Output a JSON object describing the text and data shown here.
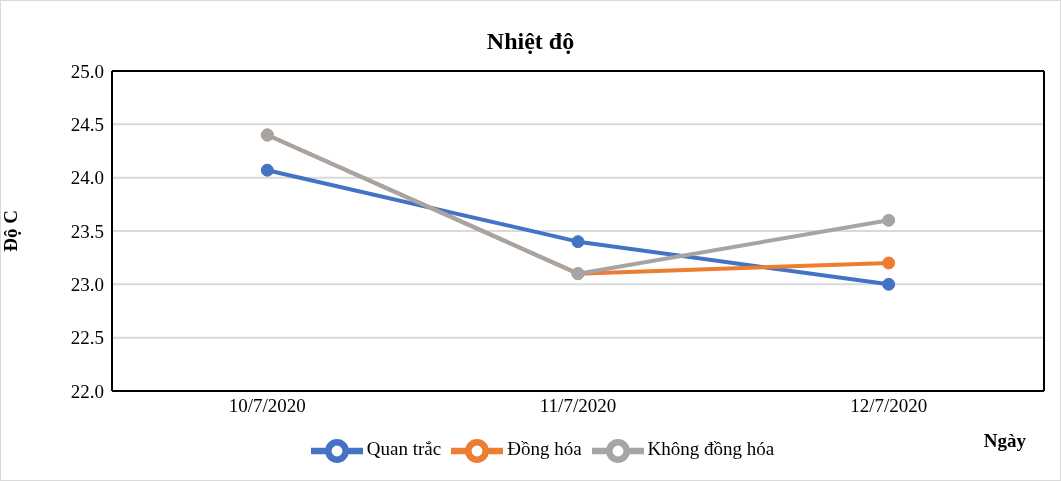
{
  "chart_data": {
    "type": "line",
    "title": "Nhiệt độ",
    "xlabel": "Ngày",
    "ylabel": "Độ C",
    "categories": [
      "10/7/2020",
      "11/7/2020",
      "12/7/2020"
    ],
    "series": [
      {
        "name": "Quan trắc",
        "color": "#4472c4",
        "values": [
          24.07,
          23.4,
          23.0
        ]
      },
      {
        "name": "Đồng hóa",
        "color": "#ed7d31",
        "values": [
          24.4,
          23.1,
          23.2
        ]
      },
      {
        "name": "Không đồng hóa",
        "color": "#a5a5a5",
        "values": [
          24.4,
          23.1,
          23.6
        ]
      }
    ],
    "ylim": [
      22,
      25
    ],
    "yticks": [
      {
        "value": 22,
        "label": "22.0"
      },
      {
        "value": 22.5,
        "label": "22.5"
      },
      {
        "value": 23,
        "label": "23.0"
      },
      {
        "value": 23.5,
        "label": "23.5"
      },
      {
        "value": 24,
        "label": "24.0"
      },
      {
        "value": 24.5,
        "label": "24.5"
      },
      {
        "value": 25,
        "label": "25.0"
      }
    ],
    "grid": "y",
    "legend": "bottom",
    "marker": "circle",
    "line_style": "solid"
  }
}
